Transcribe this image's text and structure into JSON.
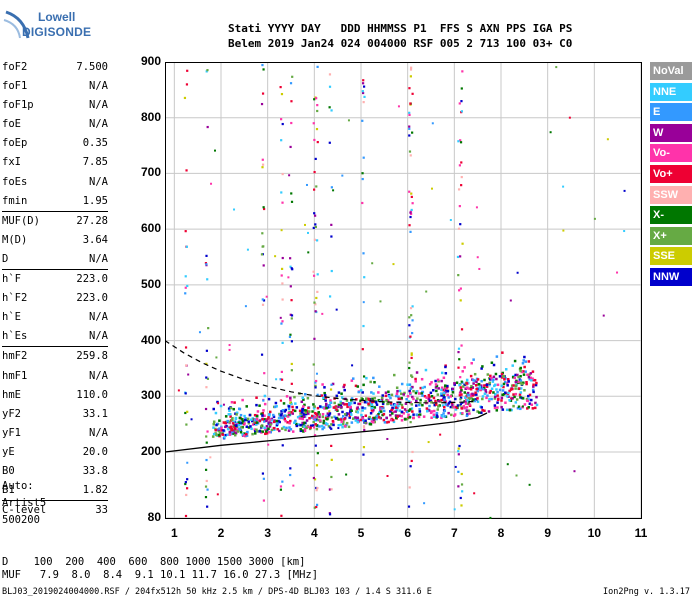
{
  "logo": {
    "line1": "Lowell",
    "line2": "DIGISONDE"
  },
  "header": {
    "line1": "Stati YYYY DAY   DDD HHMMSS P1  FFS S AXN PPS IGA PS",
    "line2": "Belem 2019 Jan24 024 004000 RSF 005 2 713 100 03+ C0"
  },
  "params": [
    {
      "label": "foF2",
      "value": "7.500"
    },
    {
      "label": "foF1",
      "value": "N/A"
    },
    {
      "label": "foF1p",
      "value": "N/A"
    },
    {
      "label": "foE",
      "value": "N/A"
    },
    {
      "label": "foEp",
      "value": "0.35"
    },
    {
      "label": "fxI",
      "value": "7.85"
    },
    {
      "label": "foEs",
      "value": "N/A"
    },
    {
      "label": "fmin",
      "value": "1.95"
    },
    {
      "sep": true
    },
    {
      "label": "MUF(D)",
      "value": "27.28"
    },
    {
      "label": "M(D)",
      "value": "3.64"
    },
    {
      "label": "D",
      "value": "N/A"
    },
    {
      "sep": true
    },
    {
      "label": "h`F",
      "value": "223.0"
    },
    {
      "label": "h`F2",
      "value": "223.0"
    },
    {
      "label": "h`E",
      "value": "N/A"
    },
    {
      "label": "h`Es",
      "value": "N/A"
    },
    {
      "sep": true
    },
    {
      "label": "hmF2",
      "value": "259.8"
    },
    {
      "label": "hmF1",
      "value": "N/A"
    },
    {
      "label": "hmE",
      "value": "110.0"
    },
    {
      "label": "yF2",
      "value": "33.1"
    },
    {
      "label": "yF1",
      "value": "N/A"
    },
    {
      "label": "yE",
      "value": "20.0"
    },
    {
      "label": "B0",
      "value": "33.8"
    },
    {
      "label": "B1",
      "value": "1.82"
    },
    {
      "sep": true
    },
    {
      "label": "C-level",
      "value": "33"
    }
  ],
  "auto": {
    "line1": "Auto:",
    "line2": "Artist5",
    "line3": "500200"
  },
  "legend": [
    {
      "label": "NoVal",
      "color": "#9a9a9a"
    },
    {
      "label": "NNE",
      "color": "#33ccff"
    },
    {
      "label": "E",
      "color": "#3399ff"
    },
    {
      "label": "W",
      "color": "#990099"
    },
    {
      "label": "Vo-",
      "color": "#ff33aa"
    },
    {
      "label": "Vo+",
      "color": "#ee0033"
    },
    {
      "label": "SSW",
      "color": "#ffb0b0"
    },
    {
      "label": "X-",
      "color": "#007700"
    },
    {
      "label": "X+",
      "color": "#66aa44"
    },
    {
      "label": "SSE",
      "color": "#cccc00"
    },
    {
      "label": "NNW",
      "color": "#0000cc"
    }
  ],
  "dmuf": {
    "line1": "D    100  200  400  600  800 1000 1500 3000 [km]",
    "line2": "MUF   7.9  8.0  8.4  9.1 10.1 11.7 16.0 27.3 [MHz]"
  },
  "footer": {
    "left": "BLJ03_2019024004000.RSF / 204fx512h 50 kHz 2.5 km / DPS-4D BLJ03 103 / 1.4 S 311.6 E",
    "right": "Ion2Png v. 1.3.17"
  },
  "chart_data": {
    "type": "scatter",
    "title": "",
    "xlabel": "",
    "ylabel": "",
    "xlim": [
      0.8,
      11
    ],
    "ylim": [
      80,
      900
    ],
    "x_ticks": [
      "1",
      "2",
      "3",
      "4",
      "5",
      "6",
      "7",
      "8",
      "9",
      "10",
      "11"
    ],
    "y_ticks": [
      "80",
      "200",
      "300",
      "400",
      "500",
      "600",
      "700",
      "800",
      "900"
    ],
    "grid": true,
    "o_trace_cluster_frequencies_mhz": [
      2.1,
      2.5,
      3.0,
      3.55,
      4.0,
      4.5,
      5.0,
      5.5,
      6.0,
      6.55,
      7.05,
      7.5,
      8.0,
      8.5
    ],
    "lower_curve": {
      "x": [
        0.8,
        2.0,
        3.0,
        4.0,
        5.0,
        6.0,
        7.0,
        7.5,
        7.7
      ],
      "y": [
        200,
        212,
        220,
        228,
        236,
        244,
        254,
        262,
        270
      ]
    },
    "upper_dashed_curve": {
      "x": [
        0.8,
        1.2,
        1.6,
        2.0,
        2.5,
        3.0,
        3.5,
        4.0,
        4.5,
        5.0,
        5.5,
        6.0,
        6.5,
        7.0,
        7.3,
        7.5
      ],
      "y": [
        400,
        378,
        360,
        345,
        330,
        318,
        308,
        301,
        296,
        293,
        290,
        289,
        288,
        289,
        290,
        292
      ]
    }
  }
}
